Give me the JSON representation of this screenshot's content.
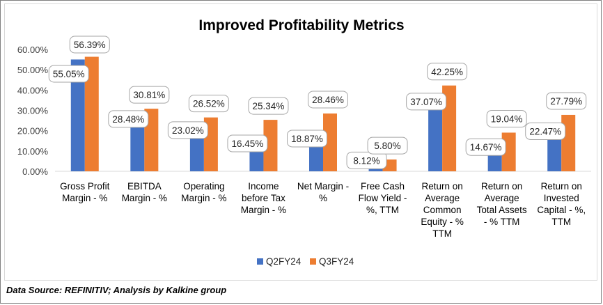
{
  "footer": {
    "source": "Data Source: REFINITIV; Analysis by Kalkine group"
  },
  "colors": {
    "q2": "#4472c4",
    "q3": "#ed7d31",
    "label_border": "#a6a6a6",
    "axis": "#d9d9d9",
    "text": "#404040"
  },
  "chart_data": {
    "type": "bar",
    "title": "Improved Profitability Metrics",
    "xlabel": "",
    "ylabel": "",
    "ylim": [
      0,
      60
    ],
    "yticks": [
      "0.00%",
      "10.00%",
      "20.00%",
      "30.00%",
      "40.00%",
      "50.00%",
      "60.00%"
    ],
    "grid": false,
    "legend_position": "bottom",
    "categories": [
      [
        "Gross Profit",
        "Margin - %"
      ],
      [
        "EBITDA",
        "Margin - %"
      ],
      [
        "Operating",
        "Margin - %"
      ],
      [
        "Income",
        "before Tax",
        "Margin - %"
      ],
      [
        "Net Margin -",
        "%"
      ],
      [
        "Free Cash",
        "Flow Yield -",
        "%, TTM"
      ],
      [
        "Return on",
        "Average",
        "Common",
        "Equity - %",
        "TTM"
      ],
      [
        "Return on",
        "Average",
        "Total Assets",
        "- % TTM"
      ],
      [
        "Return on",
        "Invested",
        "Capital - %,",
        "TTM"
      ]
    ],
    "series": [
      {
        "name": "Q2FY24",
        "values": [
          55.05,
          28.48,
          23.02,
          16.45,
          18.87,
          8.12,
          37.07,
          14.67,
          22.47
        ],
        "labels": [
          "55.05%",
          "28.48%",
          "23.02%",
          "16.45%",
          "18.87%",
          "8.12%",
          "37.07%",
          "14.67%",
          "22.47%"
        ]
      },
      {
        "name": "Q3FY24",
        "values": [
          56.39,
          30.81,
          26.52,
          25.34,
          28.46,
          5.8,
          42.25,
          19.04,
          27.79
        ],
        "labels": [
          "56.39%",
          "30.81%",
          "26.52%",
          "25.34%",
          "28.46%",
          "5.80%",
          "42.25%",
          "19.04%",
          "27.79%"
        ]
      }
    ]
  }
}
